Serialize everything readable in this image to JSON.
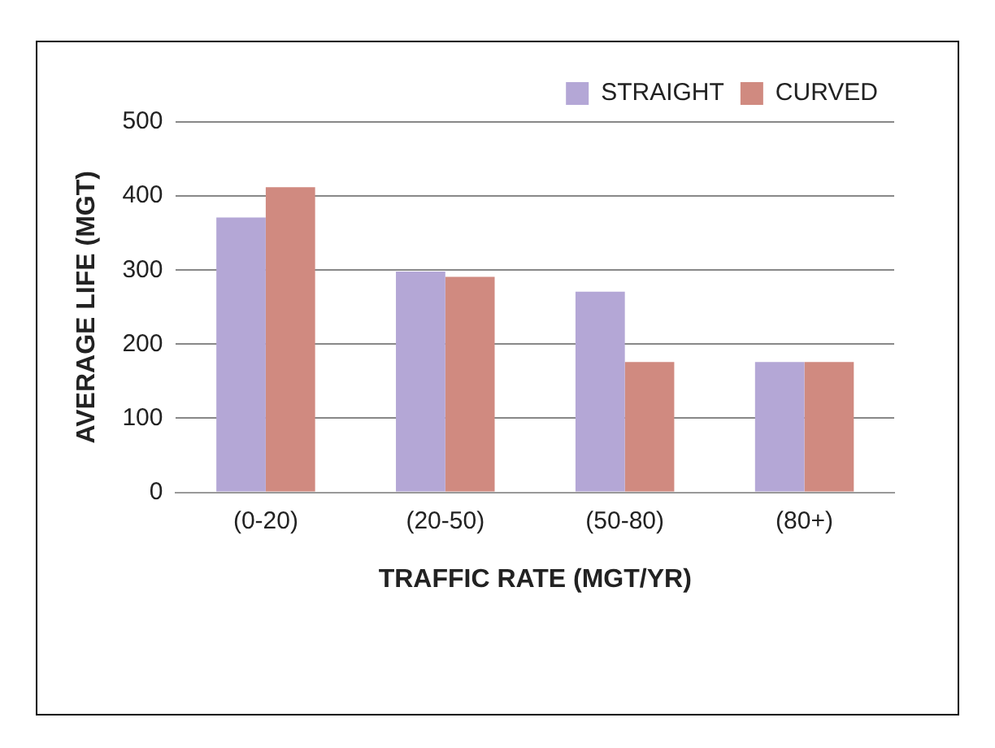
{
  "chart_data": {
    "type": "bar",
    "xlabel": "TRAFFIC RATE (MGT/YR)",
    "ylabel": "AVERAGE LIFE (MGT)",
    "categories": [
      "(0-20)",
      "(20-50)",
      "(50-80)",
      "(80+)"
    ],
    "series": [
      {
        "name": "STRAIGHT",
        "color": "#b4a7d6",
        "values": [
          371,
          298,
          271,
          176
        ]
      },
      {
        "name": "CURVED",
        "color": "#d08a80",
        "values": [
          412,
          291,
          176,
          176
        ]
      }
    ],
    "ylim": [
      0,
      500
    ],
    "yticks": [
      0,
      100,
      200,
      300,
      400,
      500
    ],
    "grid": "y",
    "legend": "top right"
  }
}
